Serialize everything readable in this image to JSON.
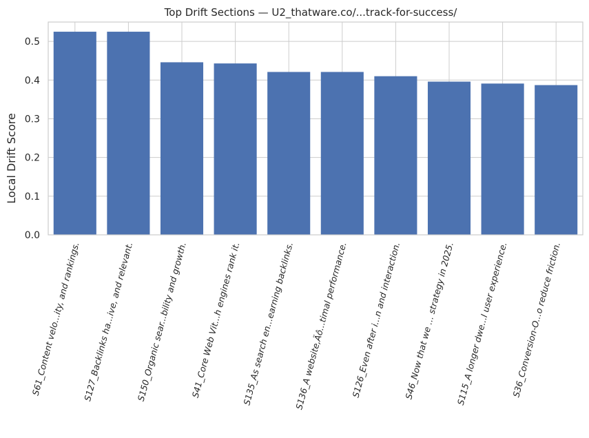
{
  "chart_data": {
    "type": "bar",
    "title": "Top Drift Sections — U2_thatware.co/...track-for-success/",
    "xlabel": "",
    "ylabel": "Local Drift Score",
    "ylim": [
      0,
      0.55
    ],
    "yticks": [
      "0.0",
      "0.1",
      "0.2",
      "0.3",
      "0.4",
      "0.5"
    ],
    "grid": true,
    "bar_color": "#4c72b0",
    "categories": [
      "S61_Content velo...ity, and rankings.",
      "S127_Backlinks ha...ive, and relevant.",
      "S150_Organic sear...bility and growth.",
      "S41_Core Web Vit...h engines rank it.",
      "S135_As search en...earning backlinks.",
      "S136_A website‚Äô...timal performance.",
      "S126_Even after i...n and interaction.",
      "S46_Now that we ... strategy in 2025.",
      "S115_A longer dwe...l user experience.",
      "S36_Conversion-O...o reduce friction."
    ],
    "values": [
      0.525,
      0.525,
      0.446,
      0.443,
      0.421,
      0.421,
      0.41,
      0.396,
      0.391,
      0.387
    ]
  }
}
